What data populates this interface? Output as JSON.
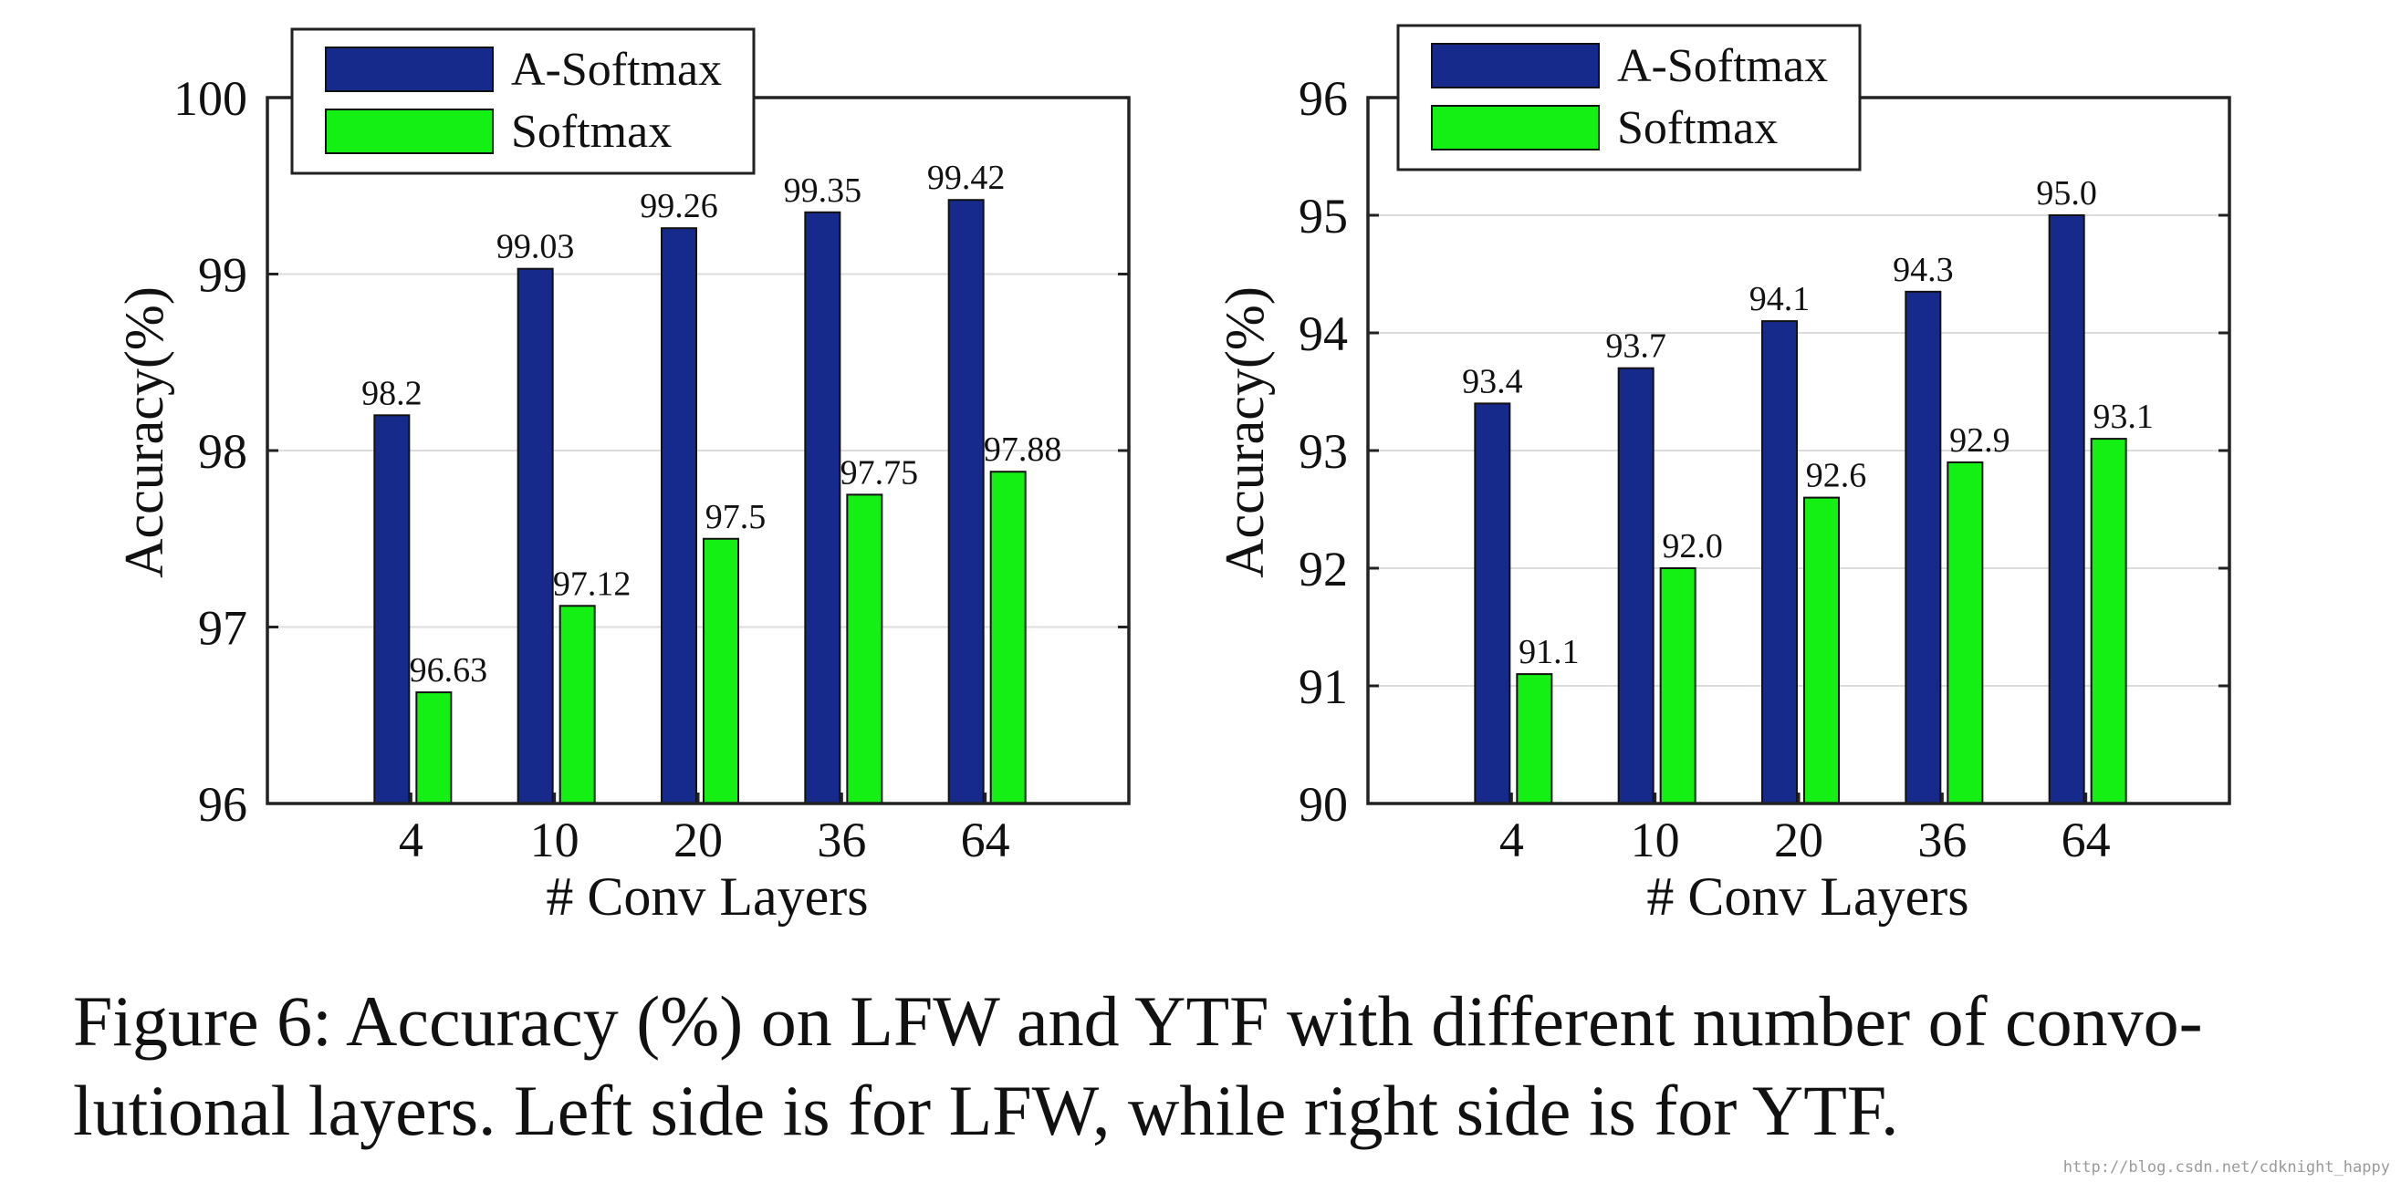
{
  "chart_data": [
    {
      "type": "bar",
      "categories": [
        "4",
        "10",
        "20",
        "36",
        "64"
      ],
      "series": [
        {
          "name": "A-Softmax",
          "values": [
            98.2,
            99.03,
            99.26,
            99.35,
            99.42
          ],
          "labels": [
            "98.2",
            "99.03",
            "99.26",
            "99.35",
            "99.42"
          ],
          "color": "#162a8c"
        },
        {
          "name": "Softmax",
          "values": [
            96.63,
            97.12,
            97.5,
            97.75,
            97.88
          ],
          "labels": [
            "96.63",
            "97.12",
            "97.5",
            "97.75",
            "97.88"
          ],
          "color": "#14f014"
        }
      ],
      "xlabel": "# Conv Layers",
      "ylabel": "Accuracy(%)",
      "ylim": [
        96,
        100
      ],
      "yticks": [
        "96",
        "97",
        "98",
        "99",
        "100"
      ],
      "grid": true,
      "legend": "top-left"
    },
    {
      "type": "bar",
      "categories": [
        "4",
        "10",
        "20",
        "36",
        "64"
      ],
      "series": [
        {
          "name": "A-Softmax",
          "values": [
            93.4,
            93.7,
            94.1,
            94.35,
            95.0
          ],
          "labels": [
            "93.4",
            "93.7",
            "94.1",
            "94.3",
            "95.0"
          ],
          "color": "#162a8c"
        },
        {
          "name": "Softmax",
          "values": [
            91.1,
            92.0,
            92.6,
            92.9,
            93.1
          ],
          "labels": [
            "91.1",
            "92.0",
            "92.6",
            "92.9",
            "93.1"
          ],
          "color": "#14f014"
        }
      ],
      "xlabel": "# Conv Layers",
      "ylabel": "Accuracy(%)",
      "ylim": [
        90,
        96
      ],
      "yticks": [
        "90",
        "91",
        "92",
        "93",
        "94",
        "95",
        "96"
      ],
      "grid": true,
      "legend": "top-left"
    }
  ],
  "caption": {
    "line1": "Figure 6: Accuracy (%) on LFW and YTF with different number of convo-",
    "line2": "lutional layers. Left side is for LFW, while right side is for YTF."
  },
  "watermark": "http://blog.csdn.net/cdknight_happy"
}
